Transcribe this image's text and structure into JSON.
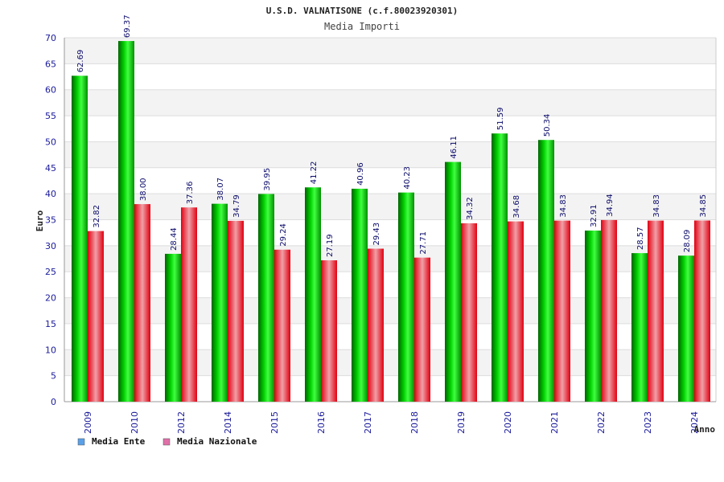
{
  "chart_data": {
    "type": "bar",
    "title": "U.S.D. VALNATISONE (c.f.80023920301)",
    "subtitle": "Media Importi",
    "xlabel": "Anno",
    "ylabel": "Euro",
    "ylim": [
      0,
      70
    ],
    "yticks": [
      0,
      5,
      10,
      15,
      20,
      25,
      30,
      35,
      40,
      45,
      50,
      55,
      60,
      65,
      70
    ],
    "grid": true,
    "legend_position": "bottom-left",
    "categories": [
      "2009",
      "2010",
      "2012",
      "2014",
      "2015",
      "2016",
      "2017",
      "2018",
      "2019",
      "2020",
      "2021",
      "2022",
      "2023",
      "2024"
    ],
    "series": [
      {
        "name": "Media Ente",
        "color": "#00b000",
        "legend_color": "#5aa0e8",
        "values": [
          62.69,
          69.37,
          28.44,
          38.07,
          39.95,
          41.22,
          40.96,
          40.23,
          46.11,
          51.59,
          50.34,
          32.91,
          28.57,
          28.09
        ],
        "labels": [
          "62.69",
          "69.37",
          "28.44",
          "38.07",
          "39.95",
          "41.22",
          "40.96",
          "40.23",
          "46.11",
          "51.59",
          "50.34",
          "32.91",
          "28.57",
          "28.09"
        ]
      },
      {
        "name": "Media Nazionale",
        "color": "#e8202a",
        "legend_color": "#e070a8",
        "values": [
          32.82,
          38.0,
          37.36,
          34.79,
          29.24,
          27.19,
          29.43,
          27.71,
          34.32,
          34.68,
          34.83,
          34.94,
          34.83,
          34.85
        ],
        "labels": [
          "32.82",
          "38.00",
          "37.36",
          "34.79",
          "29.24",
          "27.19",
          "29.43",
          "27.71",
          "34.32",
          "34.68",
          "34.83",
          "34.94",
          "34.83",
          "34.85"
        ]
      }
    ]
  }
}
